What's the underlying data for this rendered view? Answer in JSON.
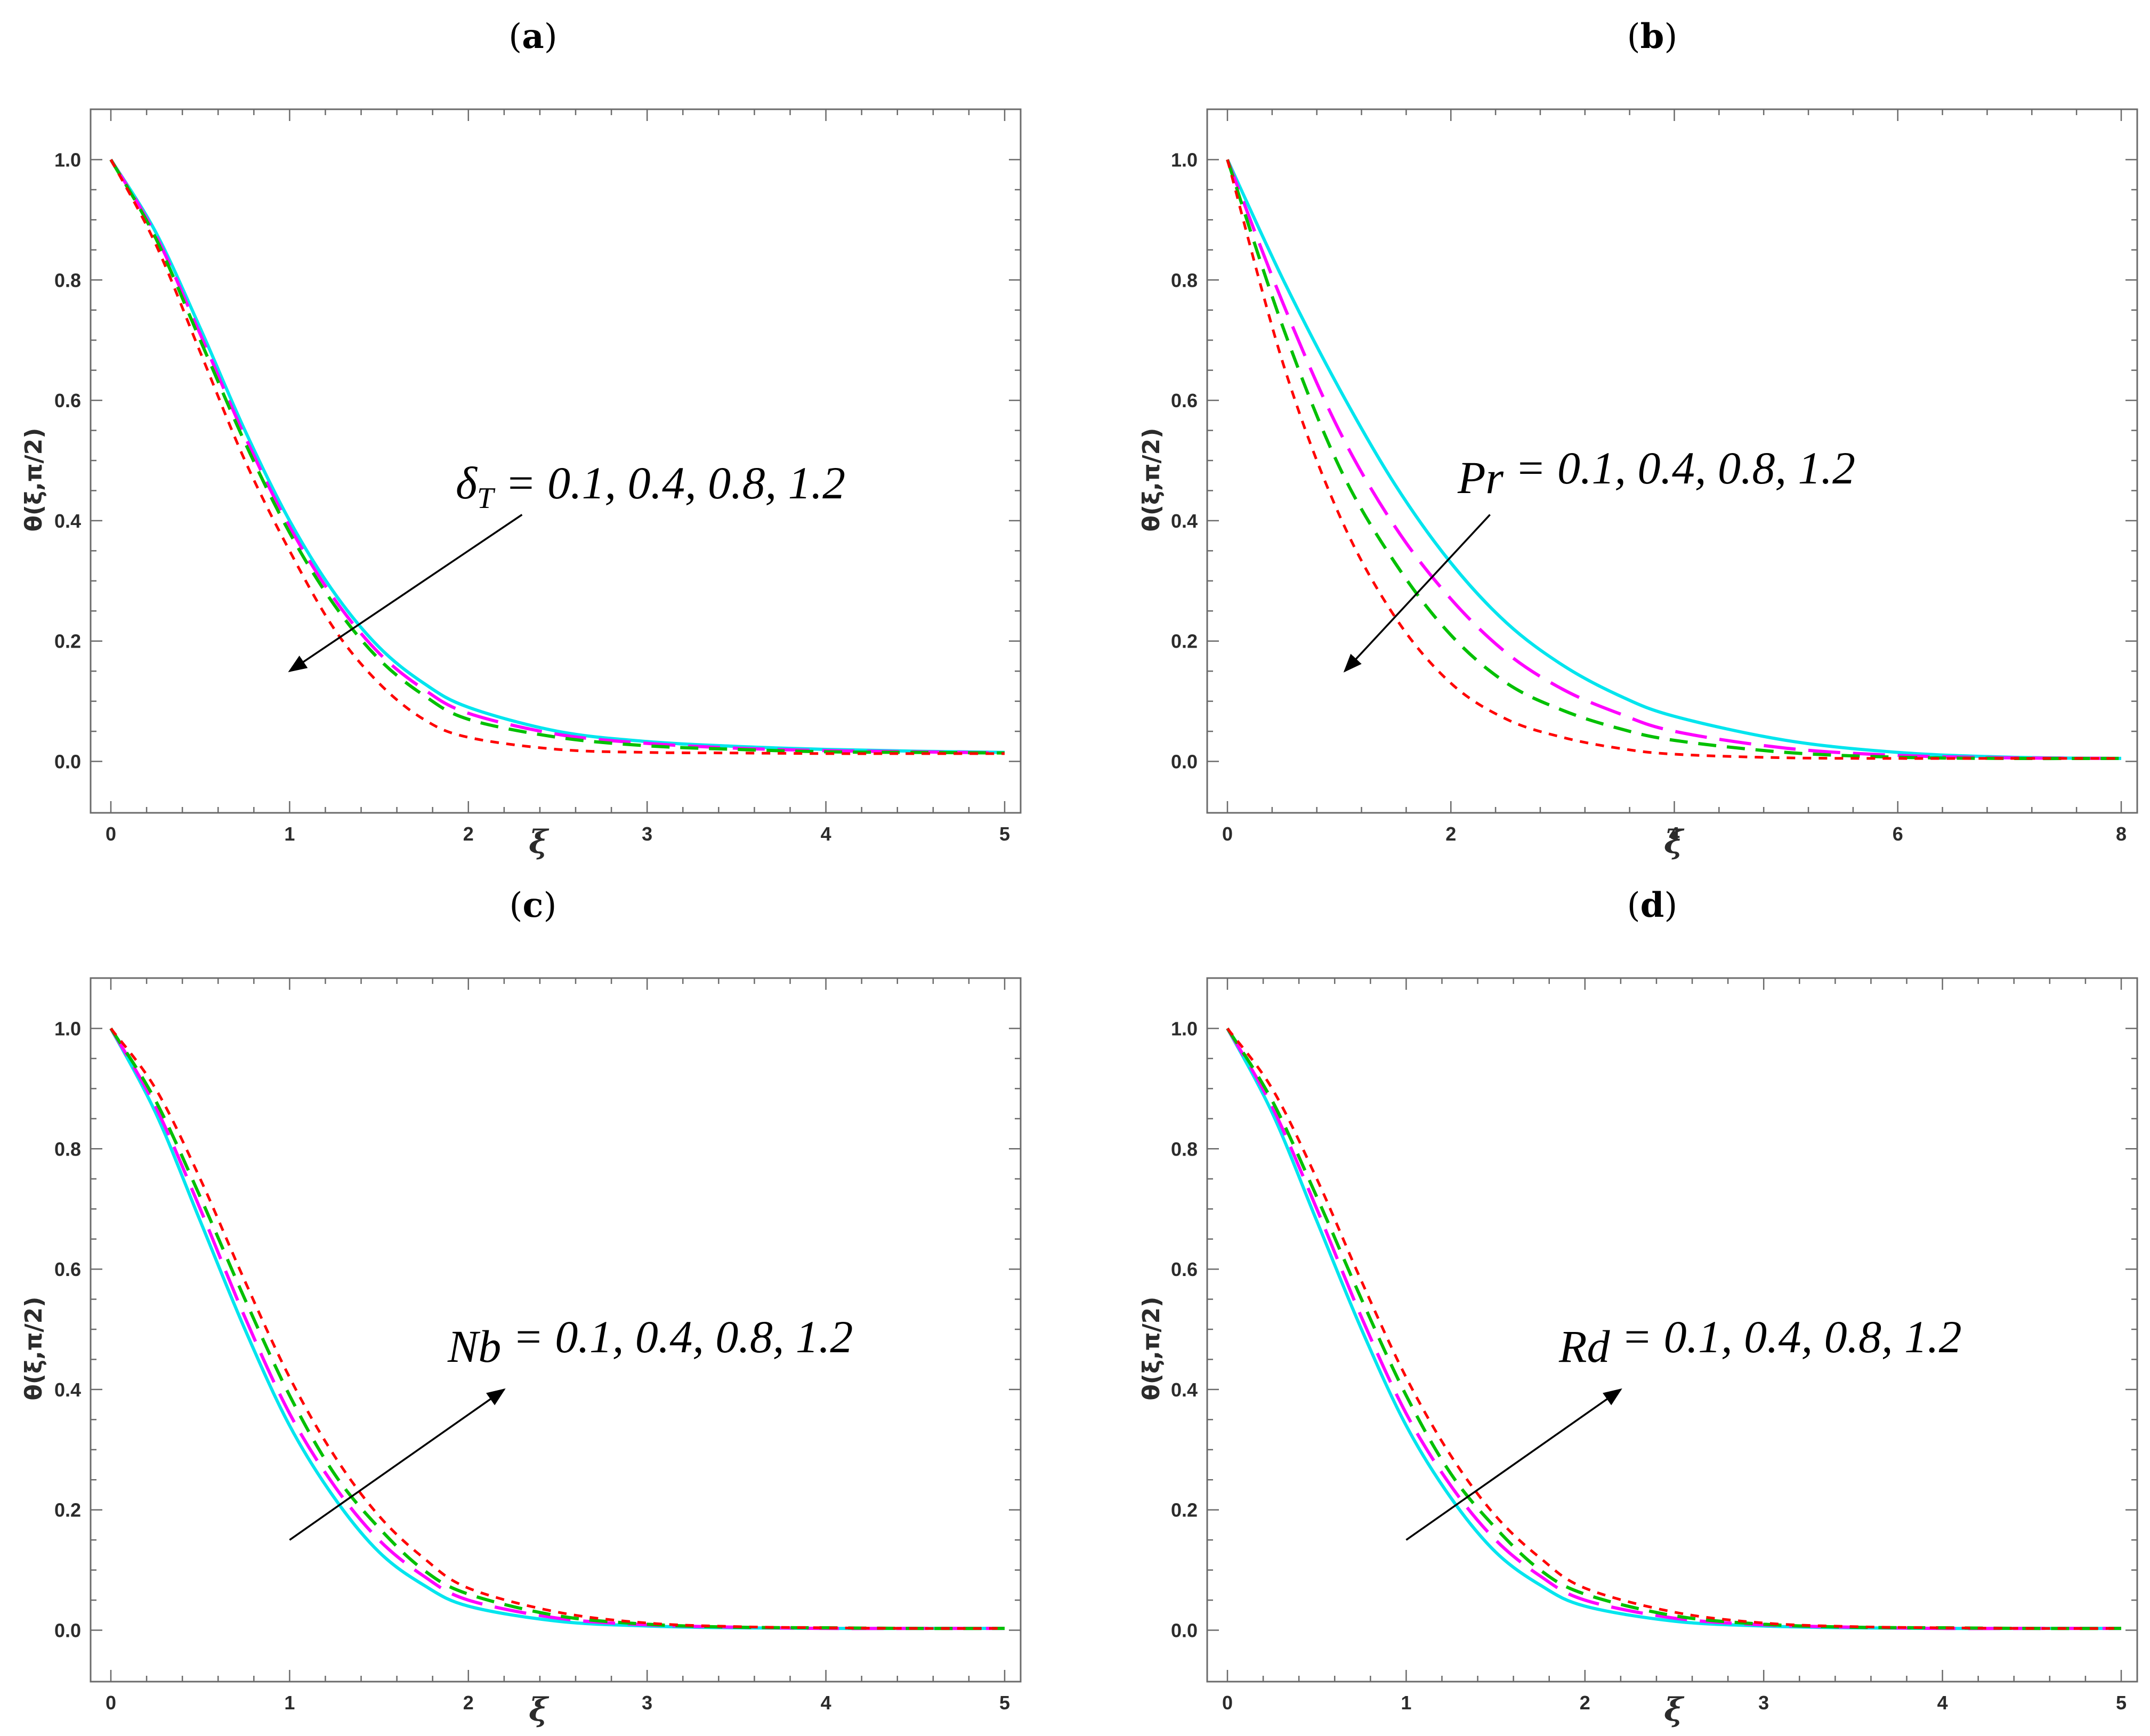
{
  "colors": {
    "series1": "#00e5ee",
    "series2": "#ff00ff",
    "series3": "#00c000",
    "series4": "#ff0000",
    "frame": "#6b6b6b",
    "text": "#2b2b2b",
    "arrow": "#000000"
  },
  "chart_data": [
    {
      "type": "line",
      "panel": "(a)",
      "panel_letter": "a",
      "xlabel": "ξ",
      "ylabel": "θ(ξ,π/2)",
      "xlim": [
        0,
        5
      ],
      "ylim": [
        -0.05,
        1.05
      ],
      "xticks": [
        0,
        1,
        2,
        3,
        4,
        5
      ],
      "xtick_labels": [
        "0",
        "1",
        "2",
        "3",
        "4",
        "5"
      ],
      "yticks": [
        0.0,
        0.2,
        0.4,
        0.6,
        0.8,
        1.0
      ],
      "ytick_labels": [
        "0.0",
        "0.2",
        "0.4",
        "0.6",
        "0.8",
        "1.0"
      ],
      "annotation_symbol": "δ",
      "annotation_subscript": "T",
      "annotation_values": " = 0.1, 0.4, 0.8, 1.2",
      "arrow": {
        "from": [
          2.3,
          0.41
        ],
        "to": [
          1.0,
          0.15
        ],
        "direction": "decreasing"
      },
      "x": [
        0,
        0.25,
        0.5,
        0.75,
        1,
        1.25,
        1.5,
        1.75,
        2,
        2.5,
        3,
        3.5,
        4,
        4.5,
        5
      ],
      "series": [
        {
          "name": "δT = 0.1",
          "style": "solid",
          "color_key": "series1",
          "values": [
            1.0,
            0.88,
            0.72,
            0.55,
            0.4,
            0.28,
            0.19,
            0.13,
            0.09,
            0.05,
            0.033,
            0.025,
            0.02,
            0.017,
            0.015
          ]
        },
        {
          "name": "δT = 0.4",
          "style": "longdash",
          "color_key": "series2",
          "values": [
            1.0,
            0.875,
            0.71,
            0.54,
            0.39,
            0.27,
            0.18,
            0.12,
            0.08,
            0.045,
            0.03,
            0.022,
            0.018,
            0.016,
            0.014
          ]
        },
        {
          "name": "δT = 0.8",
          "style": "dash",
          "color_key": "series3",
          "values": [
            1.0,
            0.87,
            0.7,
            0.53,
            0.38,
            0.26,
            0.17,
            0.11,
            0.07,
            0.04,
            0.026,
            0.02,
            0.016,
            0.015,
            0.014
          ]
        },
        {
          "name": "δT = 1.2",
          "style": "shortdash",
          "color_key": "series4",
          "values": [
            1.0,
            0.86,
            0.68,
            0.5,
            0.35,
            0.22,
            0.13,
            0.07,
            0.04,
            0.02,
            0.015,
            0.014,
            0.013,
            0.013,
            0.013
          ]
        }
      ]
    },
    {
      "type": "line",
      "panel": "(b)",
      "panel_letter": "b",
      "xlabel": "ξ",
      "ylabel": "θ(ξ,π/2)",
      "xlim": [
        0,
        8
      ],
      "ylim": [
        -0.05,
        1.05
      ],
      "xticks": [
        0,
        2,
        4,
        6,
        8
      ],
      "xtick_labels": [
        "0",
        "2",
        "4",
        "6",
        "8"
      ],
      "yticks": [
        0.0,
        0.2,
        0.4,
        0.6,
        0.8,
        1.0
      ],
      "ytick_labels": [
        "0.0",
        "0.2",
        "0.4",
        "0.6",
        "0.8",
        "1.0"
      ],
      "annotation_symbol": "Pr",
      "annotation_subscript": "",
      "annotation_values": " = 0.1, 0.4, 0.8, 1.2",
      "arrow": {
        "from": [
          2.35,
          0.41
        ],
        "to": [
          1.05,
          0.15
        ],
        "direction": "decreasing"
      },
      "x": [
        0,
        0.5,
        1,
        1.5,
        2,
        2.5,
        3,
        3.5,
        4,
        5,
        6,
        7,
        8
      ],
      "series": [
        {
          "name": "Pr = 0.1",
          "style": "solid",
          "color_key": "series1",
          "values": [
            1.0,
            0.8,
            0.62,
            0.46,
            0.33,
            0.23,
            0.16,
            0.11,
            0.075,
            0.035,
            0.015,
            0.007,
            0.005
          ]
        },
        {
          "name": "Pr = 0.4",
          "style": "longdash",
          "color_key": "series2",
          "values": [
            1.0,
            0.76,
            0.55,
            0.39,
            0.27,
            0.18,
            0.12,
            0.08,
            0.05,
            0.022,
            0.01,
            0.006,
            0.005
          ]
        },
        {
          "name": "Pr = 0.8",
          "style": "dash",
          "color_key": "series3",
          "values": [
            1.0,
            0.72,
            0.49,
            0.33,
            0.21,
            0.13,
            0.085,
            0.055,
            0.035,
            0.015,
            0.007,
            0.005,
            0.005
          ]
        },
        {
          "name": "Pr = 1.2",
          "style": "shortdash",
          "color_key": "series4",
          "values": [
            1.0,
            0.66,
            0.41,
            0.24,
            0.13,
            0.07,
            0.04,
            0.022,
            0.012,
            0.006,
            0.005,
            0.005,
            0.005
          ]
        }
      ]
    },
    {
      "type": "line",
      "panel": "(c)",
      "panel_letter": "c",
      "xlabel": "ξ",
      "ylabel": "θ(ξ,π/2)",
      "xlim": [
        0,
        5
      ],
      "ylim": [
        -0.05,
        1.05
      ],
      "xticks": [
        0,
        1,
        2,
        3,
        4,
        5
      ],
      "xtick_labels": [
        "0",
        "1",
        "2",
        "3",
        "4",
        "5"
      ],
      "yticks": [
        0.0,
        0.2,
        0.4,
        0.6,
        0.8,
        1.0
      ],
      "ytick_labels": [
        "0.0",
        "0.2",
        "0.4",
        "0.6",
        "0.8",
        "1.0"
      ],
      "annotation_symbol": "Nb",
      "annotation_subscript": "",
      "annotation_values": " = 0.1, 0.4, 0.8, 1.2",
      "arrow": {
        "from": [
          1.0,
          0.15
        ],
        "to": [
          2.2,
          0.4
        ],
        "direction": "increasing"
      },
      "x": [
        0,
        0.25,
        0.5,
        0.75,
        1,
        1.25,
        1.5,
        1.75,
        2,
        2.5,
        3,
        3.5,
        4,
        4.5,
        5
      ],
      "series": [
        {
          "name": "Nb = 0.1",
          "style": "solid",
          "color_key": "series1",
          "values": [
            1.0,
            0.86,
            0.68,
            0.5,
            0.34,
            0.22,
            0.13,
            0.075,
            0.04,
            0.015,
            0.007,
            0.004,
            0.003,
            0.003,
            0.003
          ]
        },
        {
          "name": "Nb = 0.4",
          "style": "longdash",
          "color_key": "series2",
          "values": [
            1.0,
            0.87,
            0.7,
            0.52,
            0.36,
            0.24,
            0.15,
            0.09,
            0.05,
            0.02,
            0.009,
            0.005,
            0.003,
            0.003,
            0.003
          ]
        },
        {
          "name": "Nb = 0.8",
          "style": "dash",
          "color_key": "series3",
          "values": [
            1.0,
            0.88,
            0.72,
            0.55,
            0.39,
            0.26,
            0.17,
            0.1,
            0.06,
            0.024,
            0.01,
            0.005,
            0.004,
            0.003,
            0.003
          ]
        },
        {
          "name": "Nb = 1.2",
          "style": "shortdash",
          "color_key": "series4",
          "values": [
            1.0,
            0.9,
            0.75,
            0.58,
            0.42,
            0.29,
            0.19,
            0.12,
            0.07,
            0.03,
            0.012,
            0.006,
            0.004,
            0.003,
            0.003
          ]
        }
      ]
    },
    {
      "type": "line",
      "panel": "(d)",
      "panel_letter": "d",
      "xlabel": "ξ",
      "ylabel": "θ(ξ,π/2)",
      "xlim": [
        0,
        5
      ],
      "ylim": [
        -0.05,
        1.05
      ],
      "xticks": [
        0,
        1,
        2,
        3,
        4,
        5
      ],
      "xtick_labels": [
        "0",
        "1",
        "2",
        "3",
        "4",
        "5"
      ],
      "yticks": [
        0.0,
        0.2,
        0.4,
        0.6,
        0.8,
        1.0
      ],
      "ytick_labels": [
        "0.0",
        "0.2",
        "0.4",
        "0.6",
        "0.8",
        "1.0"
      ],
      "annotation_symbol": "Rd",
      "annotation_subscript": "",
      "annotation_values": " = 0.1, 0.4, 0.8, 1.2",
      "arrow": {
        "from": [
          1.0,
          0.15
        ],
        "to": [
          2.2,
          0.4
        ],
        "direction": "increasing"
      },
      "x": [
        0,
        0.25,
        0.5,
        0.75,
        1,
        1.25,
        1.5,
        1.75,
        2,
        2.5,
        3,
        3.5,
        4,
        4.5,
        5
      ],
      "series": [
        {
          "name": "Rd = 0.1",
          "style": "solid",
          "color_key": "series1",
          "values": [
            1.0,
            0.86,
            0.68,
            0.5,
            0.34,
            0.22,
            0.13,
            0.075,
            0.04,
            0.015,
            0.007,
            0.004,
            0.003,
            0.003,
            0.003
          ]
        },
        {
          "name": "Rd = 0.4",
          "style": "longdash",
          "color_key": "series2",
          "values": [
            1.0,
            0.87,
            0.7,
            0.52,
            0.36,
            0.24,
            0.15,
            0.09,
            0.05,
            0.02,
            0.009,
            0.005,
            0.003,
            0.003,
            0.003
          ]
        },
        {
          "name": "Rd = 0.8",
          "style": "dash",
          "color_key": "series3",
          "values": [
            1.0,
            0.88,
            0.72,
            0.55,
            0.39,
            0.26,
            0.17,
            0.1,
            0.06,
            0.024,
            0.01,
            0.005,
            0.004,
            0.003,
            0.003
          ]
        },
        {
          "name": "Rd = 1.2",
          "style": "shortdash",
          "color_key": "series4",
          "values": [
            1.0,
            0.9,
            0.75,
            0.58,
            0.42,
            0.29,
            0.19,
            0.12,
            0.07,
            0.03,
            0.012,
            0.006,
            0.004,
            0.003,
            0.003
          ]
        }
      ]
    }
  ]
}
